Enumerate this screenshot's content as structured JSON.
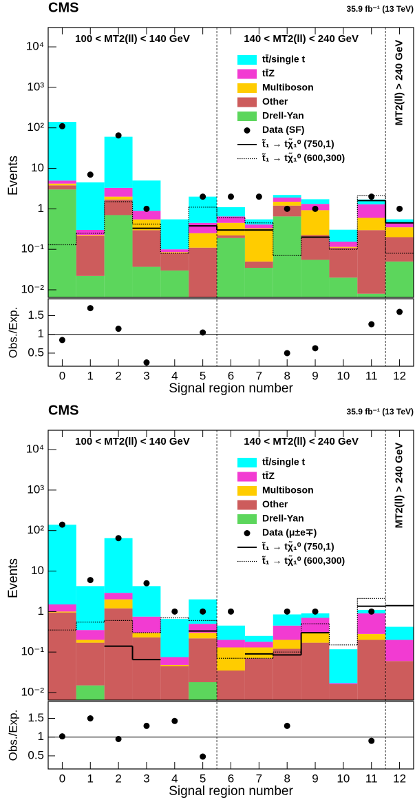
{
  "chart_data": [
    {
      "type": "stacked_bar",
      "title": "CMS",
      "subtitle": "35.9 fb⁻¹ (13 TeV)",
      "annotations": [
        "100 < MT2(ll) < 140 GeV",
        "140 < MT2(ll) < 240 GeV",
        "MT2(ll) > 240 GeV"
      ],
      "categories": [
        "0",
        "1",
        "2",
        "3",
        "4",
        "5",
        "6",
        "7",
        "8",
        "9",
        "10",
        "11",
        "12"
      ],
      "ylabel": "Events",
      "xlabel": "Signal region number",
      "log_scale": true,
      "ylim": [
        0.0065,
        30000
      ],
      "yticks": [
        {
          "value": 0.01,
          "label": "10⁻²"
        },
        {
          "value": 0.1,
          "label": "10⁻¹"
        },
        1,
        10,
        {
          "value": 100,
          "label": "10²"
        },
        {
          "value": 1000,
          "label": "10³"
        },
        {
          "value": 10000,
          "label": "10⁴"
        }
      ],
      "series": [
        {
          "name": "tt̄/single t",
          "color": "#00ffff",
          "values": [
            135,
            4.2,
            57,
            4.1,
            0.45,
            1.55,
            0.45,
            0.14,
            0.3,
            0.4,
            0.15,
            0.4,
            0.1
          ]
        },
        {
          "name": "tt̄Z",
          "color": "#f23bd2",
          "values": [
            0.8,
            0.08,
            1.3,
            0.35,
            0.015,
            0.2,
            0.2,
            0.08,
            0.4,
            0.4,
            0.04,
            0.7,
            0.1
          ]
        },
        {
          "name": "Multiboson",
          "color": "#ffcc00",
          "values": [
            0.4,
            0.01,
            0.3,
            0.25,
            0.005,
            0.14,
            0.23,
            0.28,
            0.3,
            0.7,
            0.005,
            0.3,
            0.15
          ]
        },
        {
          "name": "Other",
          "color": "#cd5c5c",
          "values": [
            0.8,
            0.19,
            1.0,
            0.26,
            0.05,
            0.11,
            0.03,
            0.015,
            0.55,
            0.17,
            0.09,
            0.29,
            0.15
          ]
        },
        {
          "name": "Drell-Yan",
          "color": "#5cd65c",
          "values": [
            3,
            0.022,
            0.7,
            0.037,
            0.03,
            0,
            0.19,
            0.035,
            0.65,
            0.055,
            0.02,
            0.008,
            0.05
          ]
        }
      ],
      "data": {
        "name": "Data (SF)",
        "values": [
          110,
          7,
          65,
          1,
          null,
          2,
          2,
          2,
          1,
          1,
          null,
          2,
          1
        ]
      },
      "signals": [
        {
          "name": "t̃₁ → tχ̃₁⁰ (750,1)",
          "style": "solid",
          "values": [
            null,
            null,
            null,
            0.33,
            null,
            0.38,
            0.3,
            0.3,
            null,
            0.2,
            null,
            1.6,
            0.45
          ]
        },
        {
          "name": "t̃₁ → tχ̃₁⁰ (600,300)",
          "style": "dotted",
          "values": [
            0.13,
            0.25,
            1.5,
            0.42,
            0.08,
            1.1,
            0.6,
            0.45,
            0.07,
            0.2,
            0.1,
            2.1,
            0.08
          ]
        }
      ],
      "ratio": {
        "ylabel": "Obs./Exp.",
        "ylim": [
          0.15,
          1.95
        ],
        "yticks": [
          0.5,
          1,
          1.5
        ],
        "reference": 1,
        "values": [
          0.85,
          1.7,
          1.15,
          0.25,
          null,
          1.05,
          null,
          null,
          0.5,
          0.63,
          null,
          1.27,
          1.6
        ]
      }
    },
    {
      "type": "stacked_bar",
      "title": "CMS",
      "subtitle": "35.9 fb⁻¹ (13 TeV)",
      "annotations": [
        "100 < MT2(ll) < 140 GeV",
        "140 < MT2(ll) < 240 GeV",
        "MT2(ll) > 240 GeV"
      ],
      "categories": [
        "0",
        "1",
        "2",
        "3",
        "4",
        "5",
        "6",
        "7",
        "8",
        "9",
        "10",
        "11",
        "12"
      ],
      "ylabel": "Events",
      "xlabel": "Signal region number",
      "log_scale": true,
      "ylim": [
        0.0065,
        30000
      ],
      "yticks": [
        {
          "value": 0.01,
          "label": "10⁻²"
        },
        {
          "value": 0.1,
          "label": "10⁻¹"
        },
        1,
        10,
        {
          "value": 100,
          "label": "10²"
        },
        {
          "value": 1000,
          "label": "10³"
        },
        {
          "value": 10000,
          "label": "10⁴"
        }
      ],
      "series": [
        {
          "name": "tt̄/single t",
          "color": "#00ffff",
          "values": [
            138,
            3.9,
            62,
            3.5,
            0.58,
            1.5,
            0.25,
            0.07,
            0.4,
            0.2,
            0.1,
            0.2,
            0.22
          ]
        },
        {
          "name": "tt̄Z",
          "color": "#f23bd2",
          "values": [
            0.5,
            0.15,
            0.9,
            0.45,
            0.027,
            0.2,
            0.07,
            0.05,
            0.25,
            0.4,
            0.001,
            0.62,
            0.14
          ]
        },
        {
          "name": "Multiboson",
          "color": "#ffcc00",
          "values": [
            0.05,
            0.03,
            0.8,
            0.07,
            0.003,
            0.08,
            0.095,
            0.06,
            0.08,
            0.13,
            0,
            0.08,
            0
          ]
        },
        {
          "name": "Other",
          "color": "#cd5c5c",
          "values": [
            0.95,
            0.155,
            1.2,
            0.23,
            0.045,
            0.2,
            0.035,
            0.07,
            0.12,
            0.17,
            0.016,
            0.2,
            0.06
          ]
        },
        {
          "name": "Drell-Yan",
          "color": "#5cd65c",
          "values": [
            0,
            0.015,
            0,
            0,
            0,
            0.018,
            0,
            0,
            0,
            0,
            0,
            0,
            0
          ]
        }
      ],
      "data": {
        "name": "Data (μ±e∓)",
        "values": [
          140,
          6,
          65,
          5,
          1,
          1,
          1,
          null,
          1,
          1,
          null,
          1,
          null
        ]
      },
      "signals": [
        {
          "name": "t̃₁ → tχ̃₁⁰ (750,1)",
          "style": "solid",
          "values": [
            null,
            null,
            0.14,
            0.065,
            null,
            0.33,
            null,
            0.09,
            0.085,
            0.3,
            null,
            1.35,
            1.4
          ]
        },
        {
          "name": "t̃₁ → tχ̃₁⁰ (600,300)",
          "style": "dotted",
          "values": [
            0.35,
            0.55,
            0.6,
            0.3,
            0.7,
            0.6,
            0.07,
            0.07,
            0.1,
            0.5,
            0.15,
            2.1,
            null
          ]
        }
      ],
      "ratio": {
        "ylabel": "Obs./Exp.",
        "ylim": [
          0.15,
          1.95
        ],
        "yticks": [
          0.5,
          1,
          1.5
        ],
        "reference": 1,
        "values": [
          1.02,
          1.5,
          0.95,
          1.3,
          1.43,
          0.48,
          null,
          null,
          1.3,
          null,
          null,
          0.9,
          null
        ]
      }
    }
  ]
}
